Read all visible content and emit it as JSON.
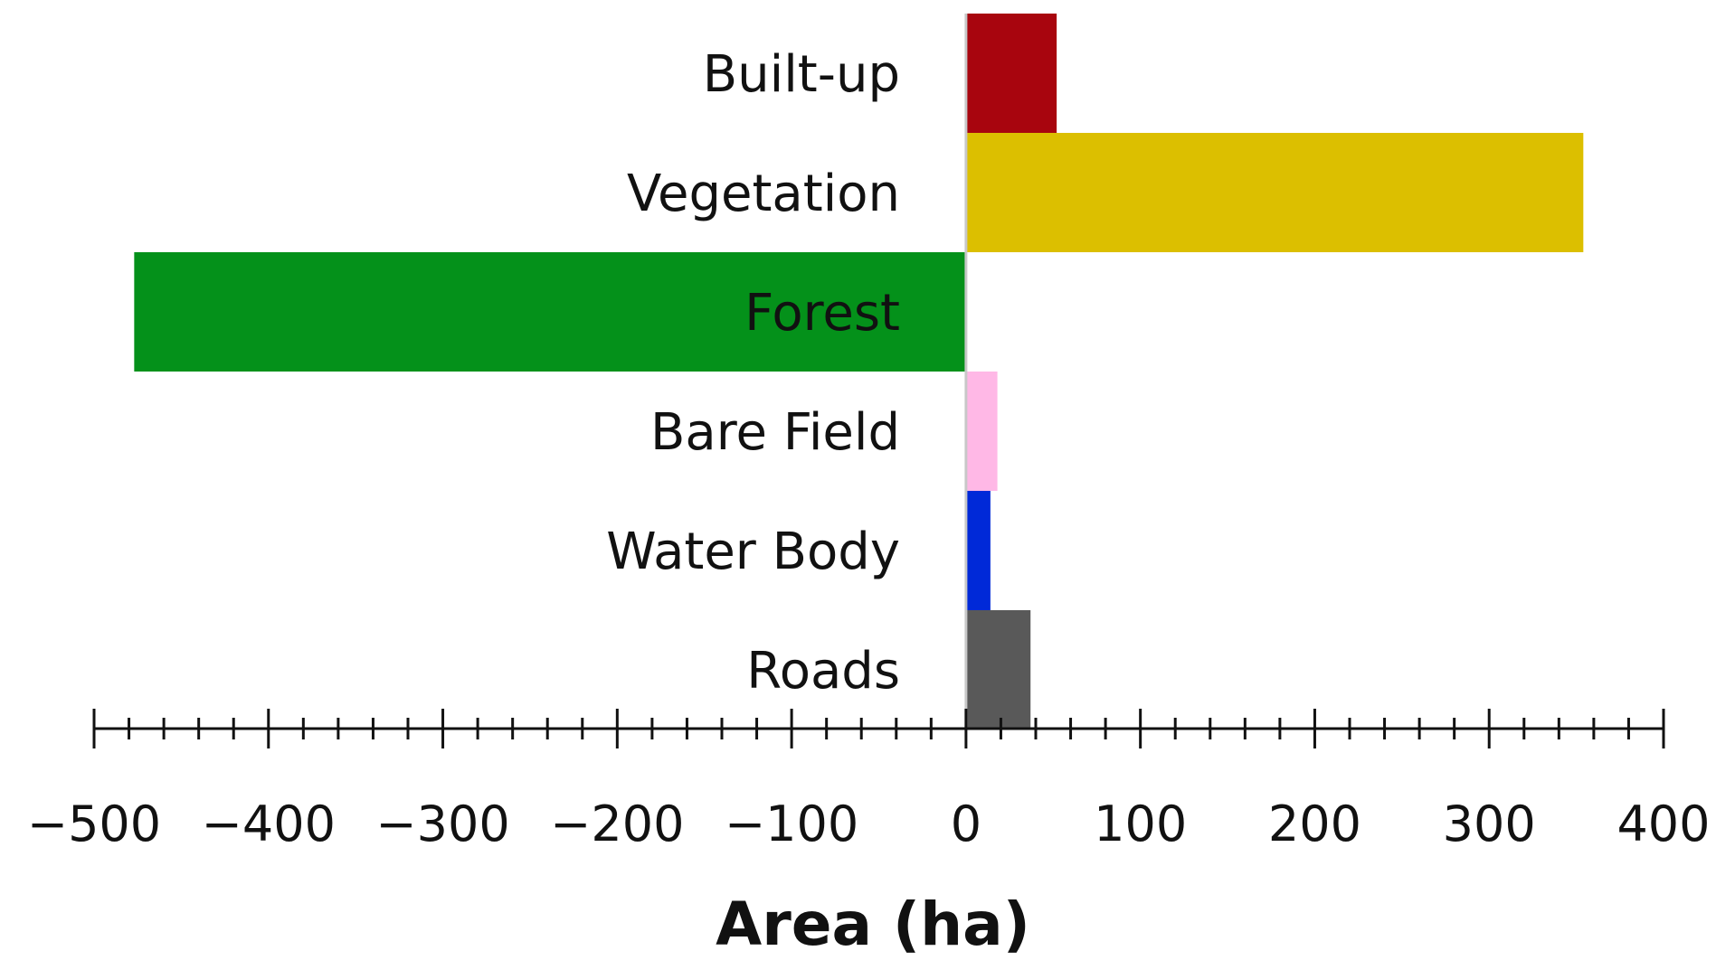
{
  "chart_data": {
    "type": "bar",
    "orientation": "horizontal",
    "title": "",
    "xlabel": "Area (ha)",
    "ylabel": "",
    "categories": [
      "Built-up",
      "Vegetation",
      "Forest",
      "Bare Field",
      "Water Body",
      "Roads"
    ],
    "values": [
      52,
      354,
      -477,
      18,
      14,
      37
    ],
    "colors": [
      "#a8050e",
      "#dcbf00",
      "#04911a",
      "#ffb8e6",
      "#0029d8",
      "#595959"
    ],
    "xlim": [
      -500,
      400
    ],
    "x_ticks": [
      -500,
      -400,
      -300,
      -200,
      -100,
      0,
      100,
      200,
      300,
      400
    ],
    "x_tick_labels": [
      "−500",
      "−400",
      "−300",
      "−200",
      "−100",
      "0",
      "100",
      "200",
      "300",
      "400"
    ],
    "minor_tick_step": 20,
    "grid": false,
    "legend": "none"
  }
}
